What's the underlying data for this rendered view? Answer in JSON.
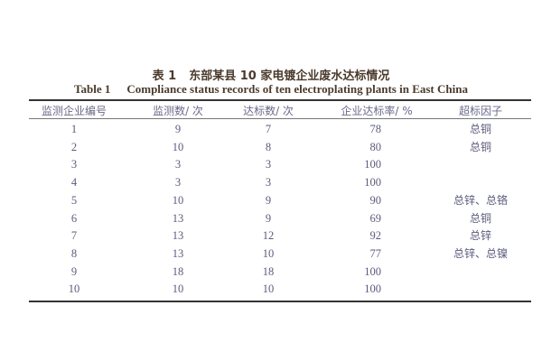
{
  "title_cn": {
    "label": "表 1",
    "text": "东部某县 10 家电镀企业废水达标情况"
  },
  "title_en": {
    "label": "Table 1",
    "text": "Compliance status records of ten electroplating plants in East China"
  },
  "columns": [
    "监测企业编号",
    "监测数/ 次",
    "达标数/ 次",
    "企业达标率/ %",
    "超标因子"
  ],
  "rows": [
    [
      "1",
      "9",
      "7",
      "78",
      "总铜"
    ],
    [
      "2",
      "10",
      "8",
      "80",
      "总铜"
    ],
    [
      "3",
      "3",
      "3",
      "100",
      ""
    ],
    [
      "4",
      "3",
      "3",
      "100",
      ""
    ],
    [
      "5",
      "10",
      "9",
      "90",
      "总锌、总铬"
    ],
    [
      "6",
      "13",
      "9",
      "69",
      "总铜"
    ],
    [
      "7",
      "13",
      "12",
      "92",
      "总锌"
    ],
    [
      "8",
      "13",
      "10",
      "77",
      "总锌、总镍"
    ],
    [
      "9",
      "18",
      "18",
      "100",
      ""
    ],
    [
      "10",
      "10",
      "10",
      "100",
      ""
    ]
  ]
}
